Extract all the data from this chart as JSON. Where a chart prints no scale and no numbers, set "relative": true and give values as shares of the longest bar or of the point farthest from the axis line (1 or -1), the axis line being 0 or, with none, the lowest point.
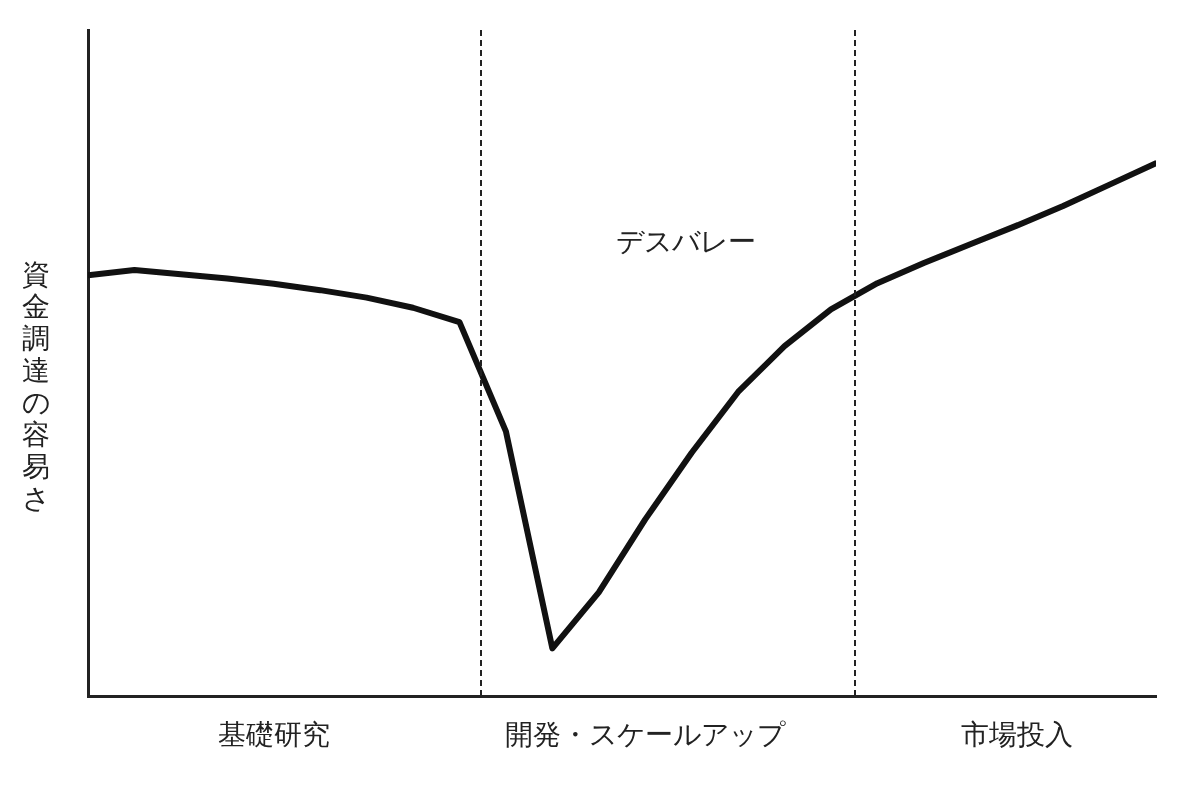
{
  "chart_data": {
    "type": "line",
    "ylabel": "資金調達の容易さ",
    "relative": true,
    "tick_labels": "x",
    "grid": false,
    "legend": false,
    "marker": "none",
    "line_style": "solid",
    "categories": [
      null,
      null,
      null,
      null,
      "基礎研究",
      null,
      null,
      null,
      null,
      null,
      null,
      null,
      "開発・スケールアップ",
      null,
      null,
      null,
      null,
      null,
      null,
      null,
      "市場投入",
      null,
      null,
      null
    ],
    "series": [
      {
        "color": "#111111",
        "values": [
          0.79,
          0.8,
          0.792,
          0.784,
          0.774,
          0.762,
          0.748,
          0.729,
          0.702,
          0.497,
          0.09,
          0.195,
          0.332,
          0.457,
          0.571,
          0.657,
          0.726,
          0.775,
          0.813,
          0.848,
          0.883,
          0.92,
          0.96,
          1
        ]
      }
    ],
    "annotations": [
      "デスバレー"
    ]
  }
}
